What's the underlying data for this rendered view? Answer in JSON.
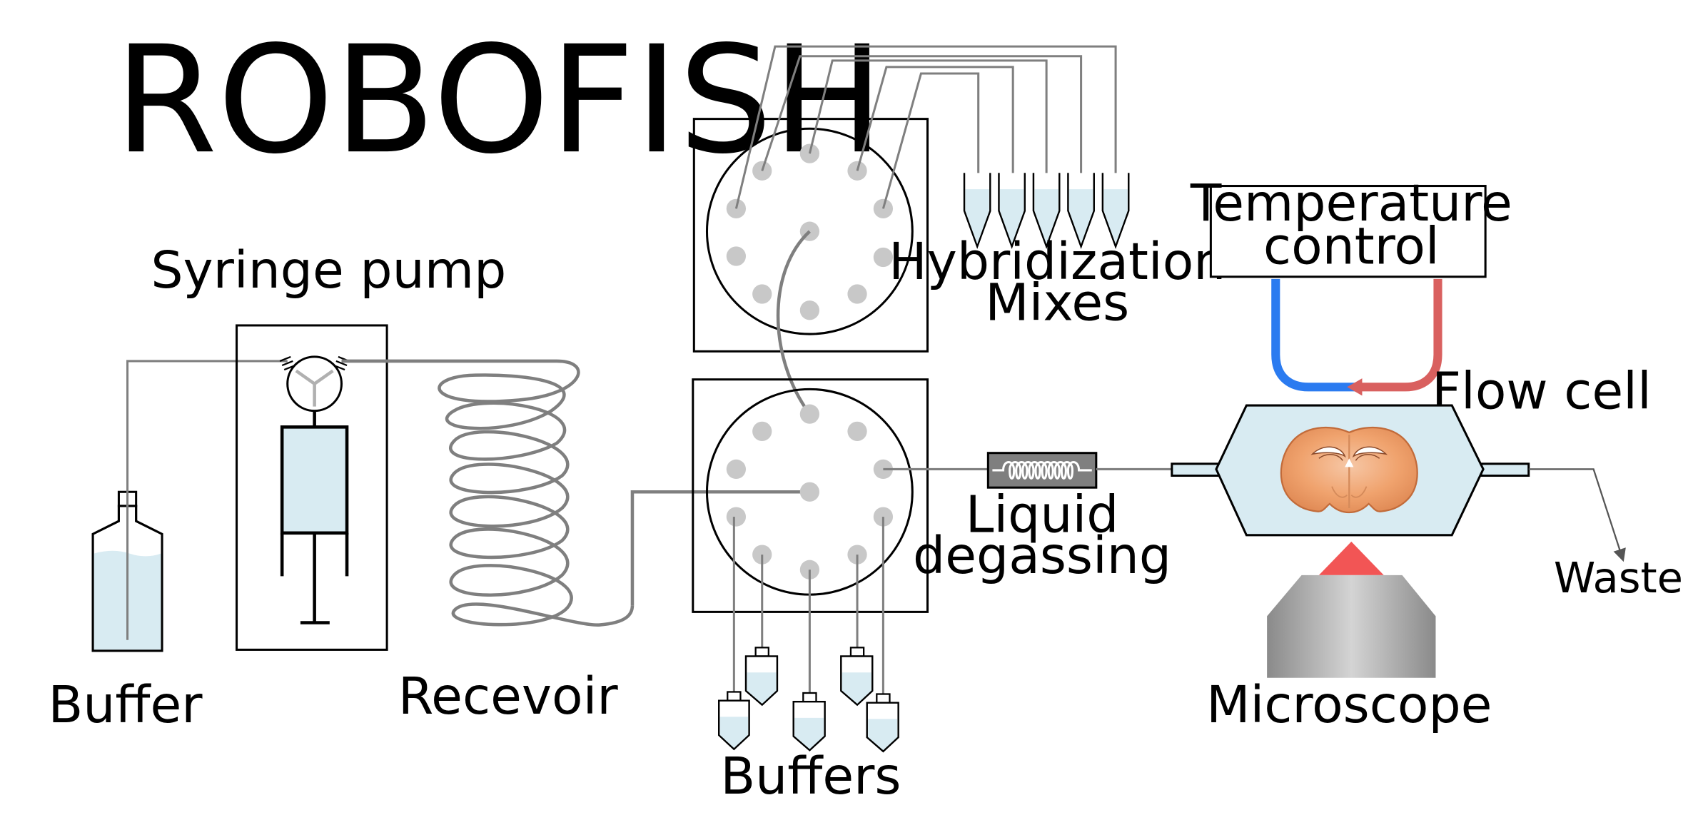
{
  "title": "ROBOFISH",
  "labels": {
    "syringe_pump": "Syringe pump",
    "buffer": "Buffer",
    "recevoir": "Recevoir",
    "hybridization_line1": "Hybridization",
    "hybridization_line2": "Mixes",
    "buffers": "Buffers",
    "liquid_degassing_line1": "Liquid",
    "liquid_degassing_line2": "degassing",
    "temperature_control_line1": "Temperature",
    "temperature_control_line2": "control",
    "flow_cell": "Flow cell",
    "microscope": "Microscope",
    "waste": "Waste"
  },
  "colors": {
    "liquid": "#d8ebf2",
    "tubing": "#7f7f7f",
    "valve_port": "#c8c8c8",
    "cold_line": "#2b7bf0",
    "hot_line": "#d9605f",
    "microscope_tip": "#f25555",
    "tissue": "#f0a36e"
  }
}
